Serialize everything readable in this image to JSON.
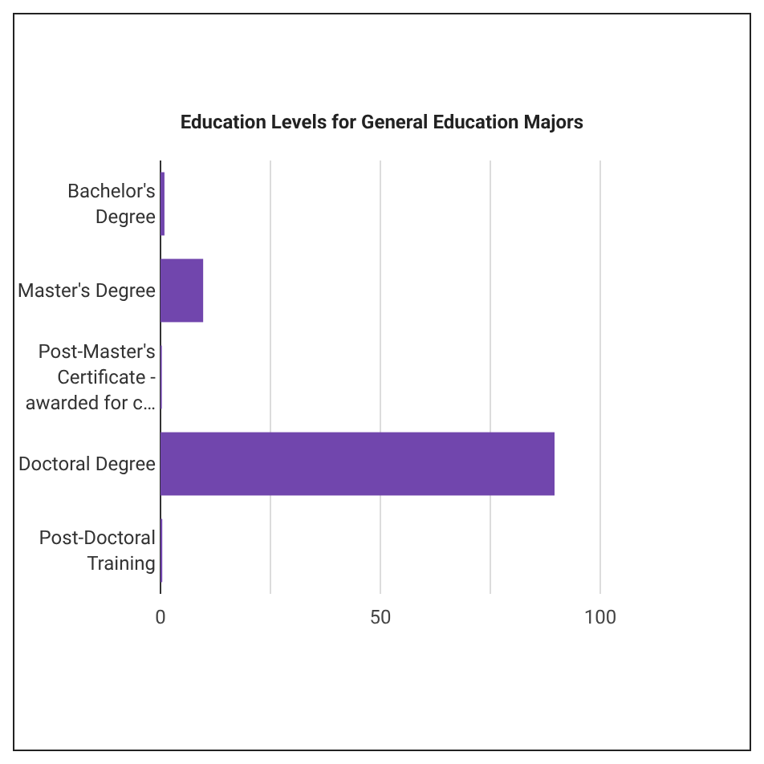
{
  "chart_data": {
    "type": "bar",
    "orientation": "horizontal",
    "title": "Education Levels for General Education Majors",
    "categories": [
      "Bachelor's Degree",
      "Master's Degree",
      "Post-Master's Certificate - awarded for c…",
      "Doctoral Degree",
      "Post-Doctoral Training"
    ],
    "values": [
      0.9,
      9.7,
      0.3,
      89.6,
      0.4
    ],
    "color": "#7146ad",
    "xlim": [
      0,
      100
    ],
    "xticks": [
      0,
      {
        "value": 25,
        "label": null
      },
      50,
      {
        "value": 75,
        "label": null
      },
      100
    ],
    "grid": "x"
  }
}
